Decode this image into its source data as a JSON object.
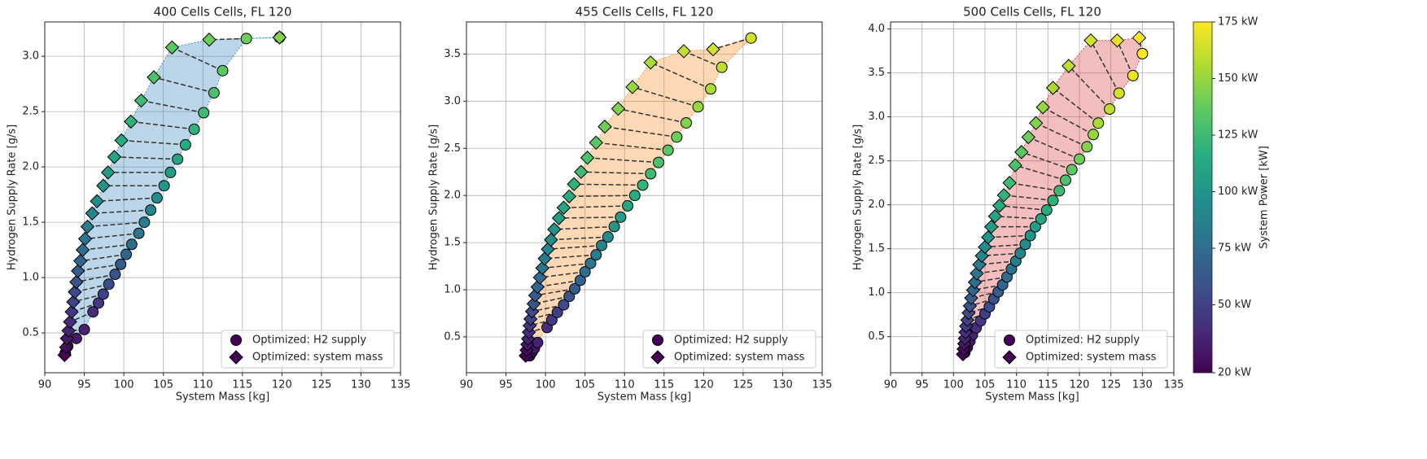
{
  "chart_data": [
    {
      "type": "scatter",
      "title": "400 Cells Cells, FL 120",
      "x_label": "System Mass [kg]",
      "y_label": "Hydrogen Supply Rate [g/s]",
      "xlim": [
        90,
        135
      ],
      "ylim": [
        0.14,
        3.31
      ],
      "xticks": [
        90,
        95,
        100,
        105,
        110,
        115,
        120,
        125,
        130,
        135
      ],
      "yticks": [
        0.5,
        {
          "value": 1,
          "label": "1.0"
        },
        1.5,
        {
          "value": 2,
          "label": "2.0"
        },
        2.5,
        {
          "value": 3,
          "label": "3.0"
        }
      ],
      "grid": true,
      "legend": "lower right",
      "fill_color": "#1f77b4",
      "series": [
        {
          "name": "Optimized: H2 supply",
          "marker": "circle",
          "x": [
            92.6,
            92.9,
            94.0,
            95.0,
            96.1,
            96.8,
            97.4,
            98.1,
            98.9,
            99.6,
            100.3,
            101.0,
            101.9,
            102.6,
            103.4,
            104.2,
            105.1,
            105.9,
            106.8,
            107.8,
            108.9,
            110.1,
            111.4,
            112.5,
            115.5,
            119.7
          ],
          "values": [
            0.32,
            0.38,
            0.45,
            0.53,
            0.69,
            0.77,
            0.85,
            0.94,
            1.03,
            1.12,
            1.21,
            1.3,
            1.4,
            1.5,
            1.61,
            1.72,
            1.83,
            1.95,
            2.07,
            2.2,
            2.34,
            2.49,
            2.67,
            2.87,
            3.16,
            3.17
          ]
        },
        {
          "name": "Optimized: system mass",
          "marker": "diamond",
          "x": [
            92.5,
            92.7,
            92.8,
            93.0,
            93.2,
            93.4,
            93.6,
            93.8,
            94.0,
            94.2,
            94.5,
            94.8,
            95.1,
            95.4,
            96.0,
            96.6,
            97.4,
            98.0,
            98.8,
            99.7,
            100.9,
            102.2,
            103.8,
            106.1,
            110.8,
            119.7
          ],
          "values": [
            0.3,
            0.37,
            0.45,
            0.52,
            0.6,
            0.69,
            0.78,
            0.87,
            0.96,
            1.06,
            1.15,
            1.25,
            1.35,
            1.46,
            1.58,
            1.69,
            1.83,
            1.95,
            2.09,
            2.24,
            2.41,
            2.6,
            2.81,
            3.08,
            3.15,
            3.17
          ]
        }
      ],
      "power": [
        20,
        25,
        30,
        35,
        40,
        45,
        50,
        55,
        60,
        65,
        70,
        75,
        80,
        85,
        90,
        95,
        100,
        105,
        110,
        115,
        120,
        125,
        130,
        135,
        140,
        145
      ]
    },
    {
      "type": "scatter",
      "title": "455 Cells Cells, FL 120",
      "x_label": "System Mass [kg]",
      "y_label": "Hydrogen Supply Rate [g/s]",
      "xlim": [
        90,
        135
      ],
      "ylim": [
        0.12,
        3.84
      ],
      "xticks": [
        90,
        95,
        100,
        105,
        110,
        115,
        120,
        125,
        130,
        135
      ],
      "yticks": [
        0.5,
        {
          "value": 1,
          "label": "1.0"
        },
        1.5,
        {
          "value": 2,
          "label": "2.0"
        },
        2.5,
        {
          "value": 3,
          "label": "3.0"
        },
        3.5
      ],
      "grid": true,
      "legend": "lower right",
      "fill_color": "#ff7f0e",
      "series": [
        {
          "name": "Optimized: H2 supply",
          "marker": "circle",
          "x": [
            98.0,
            98.3,
            98.6,
            99.0,
            100.2,
            100.8,
            101.5,
            102.3,
            103.0,
            103.7,
            104.4,
            105.0,
            105.7,
            106.4,
            107.1,
            107.9,
            108.7,
            109.5,
            110.4,
            111.3,
            112.3,
            113.3,
            114.3,
            115.5,
            116.6,
            117.8,
            119.3,
            120.9,
            122.3,
            126.0
          ],
          "values": [
            0.3,
            0.34,
            0.38,
            0.44,
            0.6,
            0.68,
            0.76,
            0.84,
            0.93,
            1.01,
            1.1,
            1.19,
            1.28,
            1.37,
            1.47,
            1.56,
            1.67,
            1.77,
            1.89,
            2.0,
            2.11,
            2.23,
            2.35,
            2.48,
            2.62,
            2.77,
            2.94,
            3.13,
            3.36,
            3.67
          ]
        },
        {
          "name": "Optimized: system mass",
          "marker": "diamond",
          "x": [
            97.5,
            97.6,
            97.7,
            97.8,
            97.9,
            98.0,
            98.1,
            98.3,
            98.5,
            98.7,
            99.0,
            99.3,
            99.6,
            99.9,
            100.3,
            100.7,
            101.1,
            101.7,
            102.3,
            103.0,
            103.6,
            104.5,
            105.3,
            106.4,
            107.5,
            109.2,
            111.0,
            113.3,
            117.5,
            121.2
          ],
          "values": [
            0.3,
            0.36,
            0.42,
            0.48,
            0.55,
            0.62,
            0.69,
            0.77,
            0.85,
            0.94,
            1.03,
            1.13,
            1.23,
            1.33,
            1.43,
            1.53,
            1.64,
            1.76,
            1.87,
            1.99,
            2.12,
            2.25,
            2.4,
            2.56,
            2.73,
            2.92,
            3.15,
            3.41,
            3.53,
            3.55
          ]
        }
      ],
      "power": [
        20,
        25,
        30,
        35,
        40,
        45,
        50,
        55,
        60,
        65,
        70,
        75,
        80,
        85,
        90,
        95,
        100,
        105,
        110,
        115,
        120,
        125,
        130,
        135,
        140,
        145,
        150,
        155,
        160,
        165
      ]
    },
    {
      "type": "scatter",
      "title": "500 Cells Cells, FL 120",
      "x_label": "System Mass [kg]",
      "y_label": "Hydrogen Supply Rate [g/s]",
      "xlim": [
        90,
        135
      ],
      "ylim": [
        0.09,
        4.08
      ],
      "xticks": [
        90,
        95,
        100,
        105,
        110,
        115,
        120,
        125,
        130,
        135
      ],
      "yticks": [
        0.5,
        {
          "value": 1,
          "label": "1.0"
        },
        1.5,
        {
          "value": 2,
          "label": "2.0"
        },
        2.5,
        {
          "value": 3,
          "label": "3.0"
        },
        3.5,
        {
          "value": 4,
          "label": "4.0"
        }
      ],
      "grid": true,
      "legend": "lower right",
      "fill_color": "#d62728",
      "series": [
        {
          "name": "Optimized: H2 supply",
          "marker": "circle",
          "x": [
            101.8,
            102.2,
            102.6,
            103.0,
            103.6,
            104.3,
            105.0,
            105.7,
            106.4,
            107.1,
            107.8,
            108.5,
            109.2,
            109.9,
            110.6,
            111.4,
            112.2,
            113.0,
            113.9,
            114.8,
            115.8,
            116.8,
            117.8,
            118.8,
            120.0,
            121.2,
            122.2,
            123.0,
            124.8,
            126.3,
            128.5,
            130.0
          ],
          "values": [
            0.32,
            0.38,
            0.45,
            0.52,
            0.6,
            0.68,
            0.76,
            0.84,
            0.93,
            1.01,
            1.09,
            1.18,
            1.27,
            1.36,
            1.45,
            1.55,
            1.65,
            1.75,
            1.84,
            1.94,
            2.05,
            2.16,
            2.28,
            2.4,
            2.52,
            2.66,
            2.8,
            2.93,
            3.09,
            3.27,
            3.47,
            3.72
          ]
        },
        {
          "name": "Optimized: system mass",
          "marker": "diamond",
          "x": [
            101.5,
            101.6,
            101.7,
            101.8,
            101.9,
            102.0,
            102.2,
            102.4,
            102.6,
            102.8,
            103.1,
            103.4,
            103.7,
            104.1,
            104.5,
            105.0,
            105.5,
            106.0,
            106.6,
            107.3,
            108.0,
            108.9,
            109.8,
            110.8,
            111.9,
            113.1,
            114.2,
            115.8,
            118.3,
            121.8,
            126.0,
            129.5
          ],
          "values": [
            0.3,
            0.36,
            0.42,
            0.48,
            0.55,
            0.62,
            0.69,
            0.77,
            0.85,
            0.94,
            1.03,
            1.12,
            1.22,
            1.32,
            1.42,
            1.52,
            1.63,
            1.75,
            1.87,
            1.99,
            2.11,
            2.25,
            2.45,
            2.6,
            2.77,
            2.93,
            3.11,
            3.33,
            3.58,
            3.87,
            3.87,
            3.9
          ]
        }
      ],
      "power": [
        20,
        25,
        30,
        35,
        40,
        45,
        50,
        55,
        60,
        65,
        70,
        75,
        80,
        85,
        90,
        95,
        100,
        105,
        110,
        115,
        120,
        125,
        130,
        135,
        140,
        145,
        150,
        155,
        160,
        165,
        170,
        175
      ]
    },
    {
      "type": "colorbar",
      "label": "System Power [kW]",
      "lim": [
        20,
        175
      ],
      "ticks": [
        {
          "value": 20,
          "label": "20 kW"
        },
        {
          "value": 50,
          "label": "50 kW"
        },
        {
          "value": 75,
          "label": "75 kW"
        },
        {
          "value": 100,
          "label": "100 kW"
        },
        {
          "value": 125,
          "label": "125 kW"
        },
        {
          "value": 150,
          "label": "150 kW"
        },
        {
          "value": 175,
          "label": "175 kW"
        }
      ],
      "colormap": [
        "#440154",
        "#472d7b",
        "#3b528b",
        "#2c728e",
        "#21918c",
        "#28ae80",
        "#5ec962",
        "#addc30",
        "#fde725"
      ]
    }
  ]
}
